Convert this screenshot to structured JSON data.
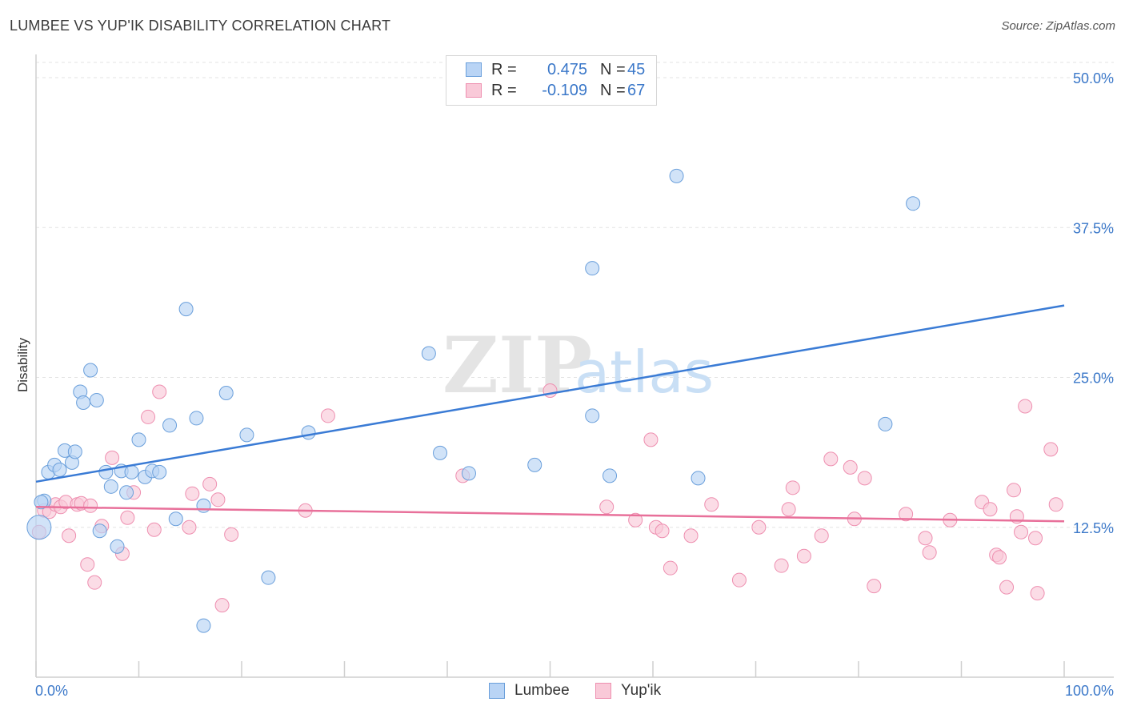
{
  "title": "LUMBEE VS YUP'IK DISABILITY CORRELATION CHART",
  "source": "Source: ZipAtlas.com",
  "watermark": {
    "zip": "ZIP",
    "atlas": "atlas"
  },
  "legend": {
    "rows": [
      {
        "swatch_fill": "#b9d4f5",
        "swatch_stroke": "#6a9fdb",
        "r_label": "R =",
        "r_value": "0.475",
        "n_label": "N =",
        "n_value": "45"
      },
      {
        "swatch_fill": "#f9c9d8",
        "swatch_stroke": "#ee8fb0",
        "r_label": "R =",
        "r_value": "-0.109",
        "n_label": "N =",
        "n_value": "67"
      }
    ]
  },
  "bottom_legend": [
    {
      "label": "Lumbee",
      "swatch_fill": "#b9d4f5",
      "swatch_stroke": "#6a9fdb"
    },
    {
      "label": "Yup'ik",
      "swatch_fill": "#f9c9d8",
      "swatch_stroke": "#ee8fb0"
    }
  ],
  "chart_data": {
    "type": "scatter",
    "title": "LUMBEE VS YUP'IK DISABILITY CORRELATION CHART",
    "xlabel": "",
    "ylabel": "Disability",
    "xlim": [
      0,
      100
    ],
    "ylim": [
      0,
      50
    ],
    "x_tick_labels": [
      "0.0%",
      "100.0%"
    ],
    "y_ticks": [
      12.5,
      25.0,
      37.5,
      50.0
    ],
    "y_tick_labels": [
      "12.5%",
      "25.0%",
      "37.5%",
      "50.0%"
    ],
    "grid": "horizontal dashed",
    "legend_position": "top-center",
    "colors": {
      "lumbee": "#3a7bd5",
      "yupik": "#e8709a"
    },
    "series": [
      {
        "name": "Lumbee",
        "color": "#3a7bd5",
        "trend": {
          "x": [
            0,
            100
          ],
          "y": [
            16.3,
            31.0
          ]
        },
        "points": [
          [
            0.3,
            12.5
          ],
          [
            0.8,
            14.7
          ],
          [
            1.2,
            17.1
          ],
          [
            1.8,
            17.7
          ],
          [
            2.3,
            17.3
          ],
          [
            2.8,
            18.9
          ],
          [
            3.5,
            17.9
          ],
          [
            3.8,
            18.8
          ],
          [
            4.3,
            23.8
          ],
          [
            4.6,
            22.9
          ],
          [
            5.3,
            25.6
          ],
          [
            5.9,
            23.1
          ],
          [
            6.2,
            12.2
          ],
          [
            6.8,
            17.1
          ],
          [
            7.3,
            15.9
          ],
          [
            7.9,
            10.9
          ],
          [
            8.3,
            17.2
          ],
          [
            8.8,
            15.4
          ],
          [
            9.3,
            17.1
          ],
          [
            10.0,
            19.8
          ],
          [
            10.6,
            16.7
          ],
          [
            11.3,
            17.2
          ],
          [
            12.0,
            17.1
          ],
          [
            13.0,
            21.0
          ],
          [
            13.6,
            13.2
          ],
          [
            14.6,
            30.7
          ],
          [
            15.6,
            21.6
          ],
          [
            16.3,
            14.3
          ],
          [
            16.3,
            4.3
          ],
          [
            18.5,
            23.7
          ],
          [
            20.5,
            20.2
          ],
          [
            22.6,
            8.3
          ],
          [
            26.5,
            20.4
          ],
          [
            38.2,
            27.0
          ],
          [
            39.3,
            18.7
          ],
          [
            42.1,
            17.0
          ],
          [
            48.5,
            17.7
          ],
          [
            54.1,
            21.8
          ],
          [
            54.1,
            34.1
          ],
          [
            55.8,
            16.8
          ],
          [
            62.3,
            41.8
          ],
          [
            64.4,
            16.6
          ],
          [
            82.6,
            21.1
          ],
          [
            85.3,
            39.5
          ],
          [
            0.5,
            14.6
          ]
        ]
      },
      {
        "name": "Yup'ik",
        "color": "#e8709a",
        "trend": {
          "x": [
            0,
            100
          ],
          "y": [
            14.2,
            13.0
          ]
        },
        "points": [
          [
            0.3,
            12.1
          ],
          [
            0.8,
            13.9
          ],
          [
            1.3,
            13.8
          ],
          [
            1.9,
            14.4
          ],
          [
            2.4,
            14.2
          ],
          [
            2.9,
            14.6
          ],
          [
            3.2,
            11.8
          ],
          [
            4.0,
            14.4
          ],
          [
            4.4,
            14.5
          ],
          [
            5.0,
            9.4
          ],
          [
            5.3,
            14.3
          ],
          [
            5.7,
            7.9
          ],
          [
            6.4,
            12.6
          ],
          [
            7.4,
            18.3
          ],
          [
            8.4,
            10.3
          ],
          [
            8.9,
            13.3
          ],
          [
            9.5,
            15.4
          ],
          [
            10.9,
            21.7
          ],
          [
            11.5,
            12.3
          ],
          [
            12.0,
            23.8
          ],
          [
            14.9,
            12.5
          ],
          [
            15.2,
            15.3
          ],
          [
            16.9,
            16.1
          ],
          [
            17.7,
            14.8
          ],
          [
            18.1,
            6.0
          ],
          [
            19.0,
            11.9
          ],
          [
            26.2,
            13.9
          ],
          [
            28.4,
            21.8
          ],
          [
            41.5,
            16.8
          ],
          [
            50.0,
            23.9
          ],
          [
            55.5,
            14.2
          ],
          [
            58.3,
            13.1
          ],
          [
            59.8,
            19.8
          ],
          [
            60.3,
            12.5
          ],
          [
            60.9,
            12.2
          ],
          [
            61.7,
            9.1
          ],
          [
            63.7,
            11.8
          ],
          [
            65.7,
            14.4
          ],
          [
            68.4,
            8.1
          ],
          [
            70.3,
            12.5
          ],
          [
            72.5,
            9.3
          ],
          [
            73.2,
            14.0
          ],
          [
            73.6,
            15.8
          ],
          [
            74.7,
            10.1
          ],
          [
            76.4,
            11.8
          ],
          [
            77.3,
            18.2
          ],
          [
            79.2,
            17.5
          ],
          [
            79.6,
            13.2
          ],
          [
            80.6,
            16.6
          ],
          [
            81.5,
            7.6
          ],
          [
            84.6,
            13.6
          ],
          [
            86.5,
            11.6
          ],
          [
            86.9,
            10.4
          ],
          [
            88.9,
            13.1
          ],
          [
            92.0,
            14.6
          ],
          [
            92.8,
            14.0
          ],
          [
            93.4,
            10.2
          ],
          [
            93.7,
            10.0
          ],
          [
            94.4,
            7.5
          ],
          [
            95.1,
            15.6
          ],
          [
            95.4,
            13.4
          ],
          [
            95.8,
            12.1
          ],
          [
            96.2,
            22.6
          ],
          [
            97.2,
            11.6
          ],
          [
            97.4,
            7.0
          ],
          [
            98.7,
            19.0
          ],
          [
            99.2,
            14.4
          ]
        ]
      }
    ]
  }
}
